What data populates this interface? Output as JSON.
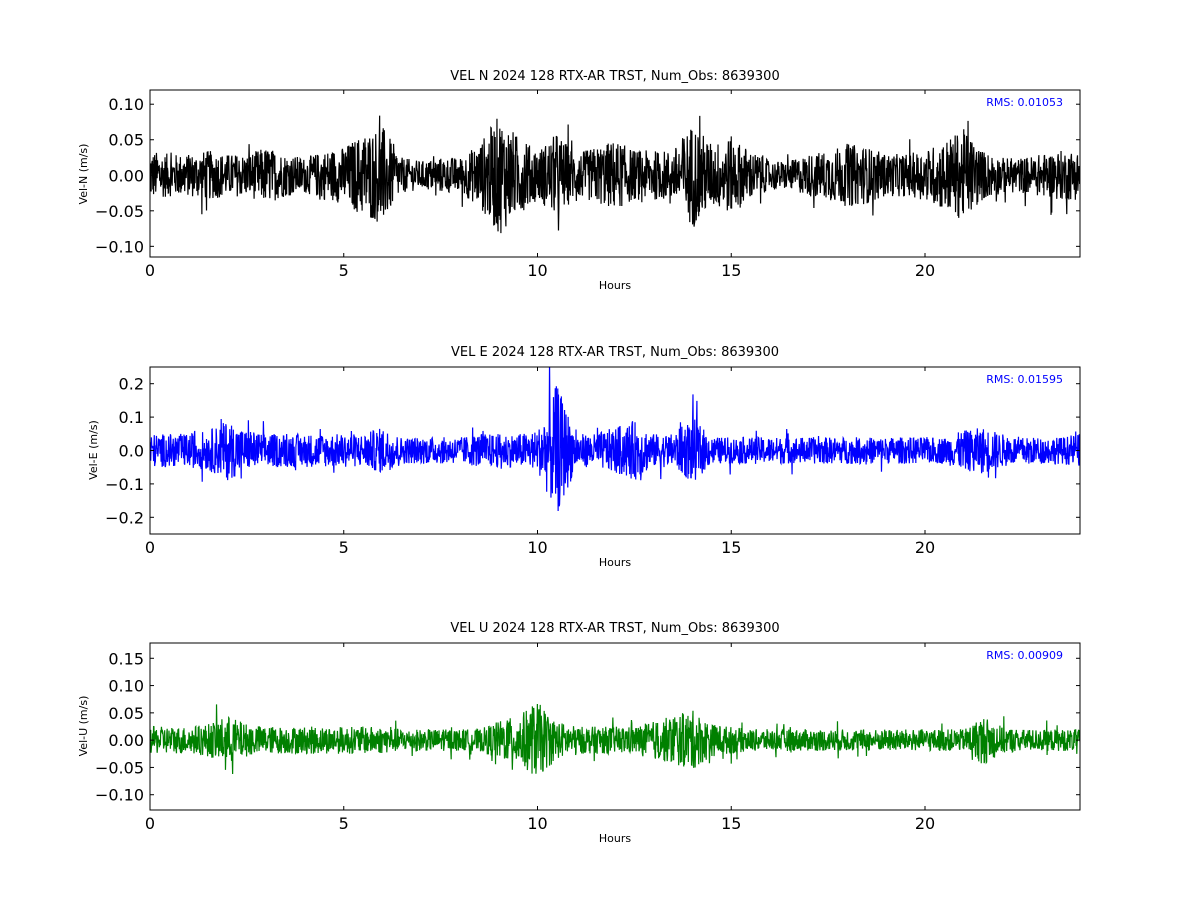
{
  "chart_data": [
    {
      "type": "line",
      "title": "VEL N 2024 128 RTX-AR  TRST, Num_Obs: 8639300",
      "xlabel": "Hours",
      "ylabel": "Vel-N (m/s)",
      "xlim": [
        0,
        24
      ],
      "ylim": [
        -0.115,
        0.12
      ],
      "xticks": [
        0,
        5,
        10,
        15,
        20
      ],
      "yticks": [
        -0.1,
        -0.05,
        0.0,
        0.05,
        0.1
      ],
      "ytick_labels": [
        "−0.10",
        "−0.05",
        "0.00",
        "0.05",
        "0.10"
      ],
      "annotation": "RMS:  0.01053",
      "color": "#000000",
      "annotation_color": "#0000ff",
      "series": [
        {
          "x": [
            0,
            0.5,
            1,
            1.5,
            2,
            2.5,
            3,
            3.5,
            4,
            4.5,
            5,
            5.5,
            6,
            6.5,
            7,
            7.5,
            8,
            8.5,
            9,
            9.5,
            10,
            10.5,
            11,
            11.5,
            12,
            12.5,
            13,
            13.5,
            14,
            14.5,
            15,
            15.5,
            16,
            16.5,
            17,
            17.5,
            18,
            18.5,
            19,
            19.5,
            20,
            20.5,
            21,
            21.5,
            22,
            22.5,
            23,
            23.5,
            24
          ],
          "y": [
            0.035,
            0.03,
            0.03,
            0.035,
            0.03,
            0.03,
            0.04,
            0.03,
            0.025,
            0.035,
            0.04,
            0.06,
            0.07,
            0.025,
            0.02,
            0.025,
            0.025,
            0.045,
            0.085,
            0.055,
            0.035,
            0.06,
            0.03,
            0.04,
            0.05,
            0.035,
            0.035,
            0.035,
            0.075,
            0.045,
            0.055,
            0.035,
            0.02,
            0.02,
            0.03,
            0.035,
            0.045,
            0.04,
            0.03,
            0.03,
            0.035,
            0.05,
            0.065,
            0.035,
            0.025,
            0.025,
            0.03,
            0.035,
            0.035
          ]
        }
      ]
    },
    {
      "type": "line",
      "title": "VEL E 2024 128 RTX-AR  TRST, Num_Obs: 8639300",
      "xlabel": "Hours",
      "ylabel": "Vel-E (m/s)",
      "xlim": [
        0,
        24
      ],
      "ylim": [
        -0.25,
        0.25
      ],
      "xticks": [
        0,
        5,
        10,
        15,
        20
      ],
      "yticks": [
        -0.2,
        -0.1,
        0.0,
        0.1,
        0.2
      ],
      "ytick_labels": [
        "−0.2",
        "−0.1",
        "0.0",
        "0.1",
        "0.2"
      ],
      "annotation": "RMS:  0.01595",
      "color": "#0000ff",
      "annotation_color": "#0000ff",
      "series": [
        {
          "x": [
            0,
            0.5,
            1,
            1.5,
            2,
            2.5,
            3,
            3.5,
            4,
            4.5,
            5,
            5.5,
            6,
            6.5,
            7,
            7.5,
            8,
            8.5,
            9,
            9.5,
            10,
            10.5,
            11,
            11.5,
            12,
            12.5,
            13,
            13.5,
            14,
            14.5,
            15,
            15.5,
            16,
            16.5,
            17,
            17.5,
            18,
            18.5,
            19,
            19.5,
            20,
            20.5,
            21,
            21.5,
            22,
            22.5,
            23,
            23.5,
            24
          ],
          "y": [
            0.05,
            0.05,
            0.05,
            0.06,
            0.09,
            0.06,
            0.05,
            0.05,
            0.05,
            0.05,
            0.05,
            0.05,
            0.07,
            0.04,
            0.04,
            0.04,
            0.04,
            0.05,
            0.05,
            0.05,
            0.06,
            0.2,
            0.05,
            0.05,
            0.07,
            0.09,
            0.05,
            0.05,
            0.1,
            0.04,
            0.04,
            0.04,
            0.04,
            0.04,
            0.04,
            0.04,
            0.04,
            0.04,
            0.04,
            0.04,
            0.04,
            0.04,
            0.06,
            0.07,
            0.05,
            0.04,
            0.04,
            0.04,
            0.05
          ]
        }
      ]
    },
    {
      "type": "line",
      "title": "VEL U 2024 128 RTX-AR  TRST, Num_Obs: 8639300",
      "xlabel": "Hours",
      "ylabel": "Vel-U (m/s)",
      "xlim": [
        0,
        24
      ],
      "ylim": [
        -0.128,
        0.178
      ],
      "xticks": [
        0,
        5,
        10,
        15,
        20
      ],
      "yticks": [
        -0.1,
        -0.05,
        0.0,
        0.05,
        0.1,
        0.15
      ],
      "ytick_labels": [
        "−0.10",
        "−0.05",
        "0.00",
        "0.05",
        "0.10",
        "0.15"
      ],
      "annotation": "RMS:  0.00909",
      "color": "#008000",
      "annotation_color": "#0000ff",
      "series": [
        {
          "x": [
            0,
            0.5,
            1,
            1.5,
            2,
            2.5,
            3,
            3.5,
            4,
            4.5,
            5,
            5.5,
            6,
            6.5,
            7,
            7.5,
            8,
            8.5,
            9,
            9.5,
            10,
            10.5,
            11,
            11.5,
            12,
            12.5,
            13,
            13.5,
            14,
            14.5,
            15,
            15.5,
            16,
            16.5,
            17,
            17.5,
            18,
            18.5,
            19,
            19.5,
            20,
            20.5,
            21,
            21.5,
            22,
            22.5,
            23,
            23.5,
            24
          ],
          "y": [
            0.025,
            0.025,
            0.025,
            0.03,
            0.045,
            0.03,
            0.025,
            0.025,
            0.025,
            0.025,
            0.025,
            0.025,
            0.025,
            0.02,
            0.02,
            0.02,
            0.02,
            0.02,
            0.035,
            0.045,
            0.07,
            0.035,
            0.025,
            0.025,
            0.025,
            0.025,
            0.035,
            0.045,
            0.055,
            0.03,
            0.025,
            0.02,
            0.02,
            0.02,
            0.02,
            0.02,
            0.02,
            0.02,
            0.02,
            0.02,
            0.02,
            0.02,
            0.02,
            0.045,
            0.025,
            0.02,
            0.02,
            0.02,
            0.02
          ]
        }
      ]
    }
  ]
}
